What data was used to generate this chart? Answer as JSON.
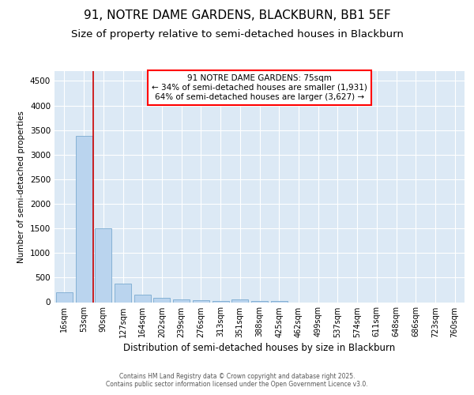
{
  "title1": "91, NOTRE DAME GARDENS, BLACKBURN, BB1 5EF",
  "title2": "Size of property relative to semi-detached houses in Blackburn",
  "xlabel": "Distribution of semi-detached houses by size in Blackburn",
  "ylabel": "Number of semi-detached properties",
  "categories": [
    "16sqm",
    "53sqm",
    "90sqm",
    "127sqm",
    "164sqm",
    "202sqm",
    "239sqm",
    "276sqm",
    "313sqm",
    "351sqm",
    "388sqm",
    "425sqm",
    "462sqm",
    "499sqm",
    "537sqm",
    "574sqm",
    "611sqm",
    "648sqm",
    "686sqm",
    "723sqm",
    "760sqm"
  ],
  "values": [
    200,
    3380,
    1500,
    380,
    150,
    90,
    55,
    38,
    28,
    50,
    25,
    30,
    0,
    0,
    0,
    0,
    0,
    0,
    0,
    0,
    0
  ],
  "bar_color": "#bad4ee",
  "bar_edge_color": "#7aaad0",
  "vline_color": "#cc0000",
  "vline_x": 1.5,
  "annotation_title": "91 NOTRE DAME GARDENS: 75sqm",
  "annotation_line2": "← 34% of semi-detached houses are smaller (1,931)",
  "annotation_line3": "64% of semi-detached houses are larger (3,627) →",
  "ylim_max": 4700,
  "yticks": [
    0,
    500,
    1000,
    1500,
    2000,
    2500,
    3000,
    3500,
    4000,
    4500
  ],
  "bg_color": "#dce9f5",
  "plot_bg": "#dce9f5",
  "footer1": "Contains HM Land Registry data © Crown copyright and database right 2025.",
  "footer2": "Contains public sector information licensed under the Open Government Licence v3.0.",
  "title1_fontsize": 11,
  "title2_fontsize": 9.5,
  "annotation_fontsize": 7.5,
  "xlabel_fontsize": 8.5,
  "ylabel_fontsize": 7.5,
  "tick_fontsize": 7,
  "footer_fontsize": 5.5
}
